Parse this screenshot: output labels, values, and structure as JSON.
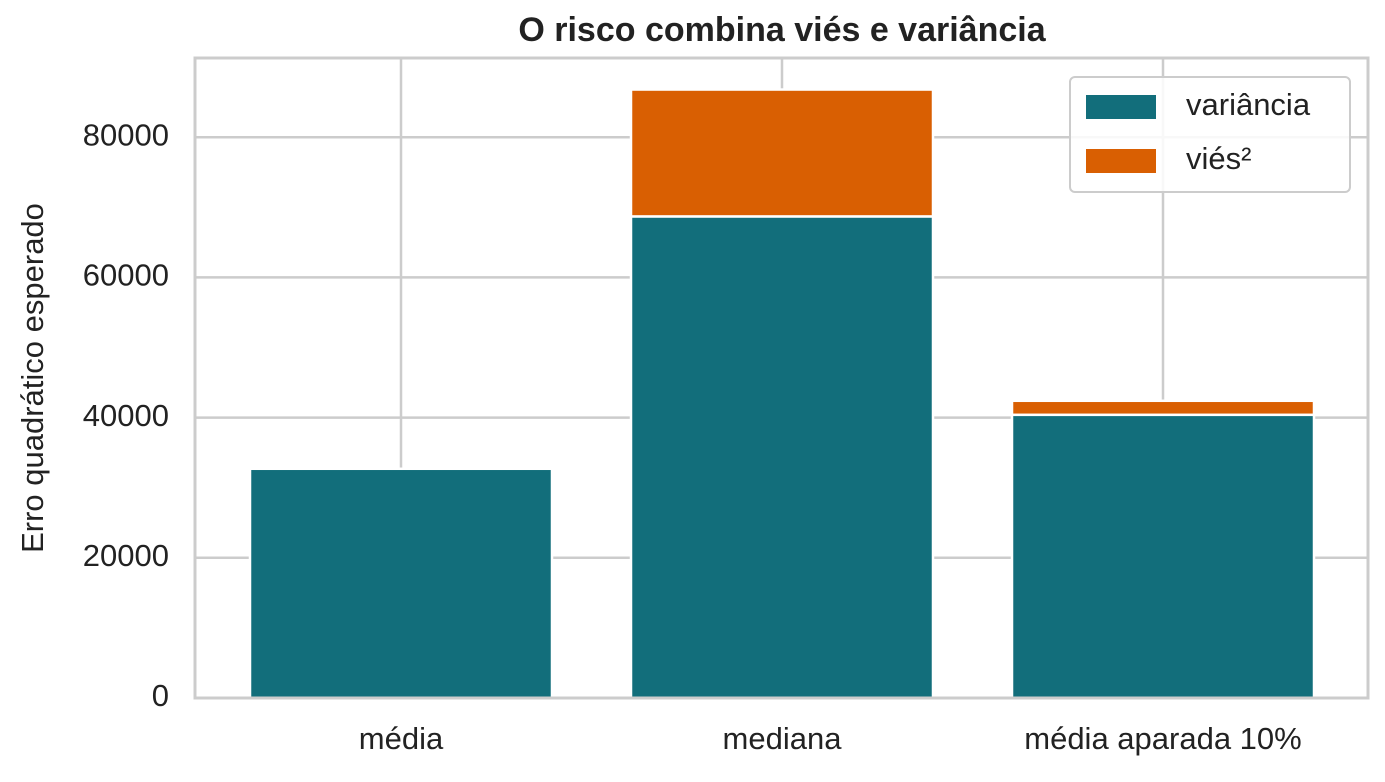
{
  "chart_data": {
    "type": "stacked_bar",
    "title": "O risco combina viés e variância",
    "y_label": "Erro quadrático esperado",
    "categories": [
      "média",
      "mediana",
      "média aparada 10%"
    ],
    "series": [
      {
        "name": "variância",
        "color": "#126e7b",
        "values": [
          32700,
          68700,
          40400
        ]
      },
      {
        "name": "viés²",
        "color": "#d95f02",
        "values": [
          0,
          18100,
          2000
        ]
      }
    ],
    "ylim": [
      0,
      91300
    ],
    "yticks": [
      0,
      20000,
      40000,
      60000,
      80000
    ],
    "grid": true,
    "legend": "upper right"
  }
}
